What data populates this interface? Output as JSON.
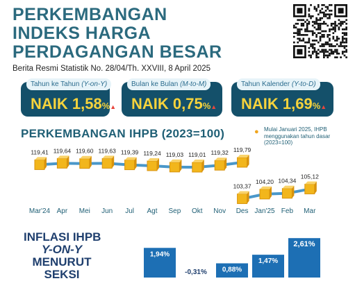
{
  "header": {
    "title_lines": [
      "PERKEMBANGAN",
      "INDEKS HARGA",
      "PERDAGANGAN BESAR"
    ],
    "subtitle": "Berita Resmi Statistik  No. 28/04/Th. XXVIII, 8 April 2025"
  },
  "cards": [
    {
      "label": "Tahun ke Tahun",
      "label_em": "(Y-on-Y)",
      "word": "NAIK",
      "value": "1,58",
      "unit": "%"
    },
    {
      "label": "Bulan ke Bulan",
      "label_em": "(M-to-M)",
      "word": "NAIK",
      "value": "0,75",
      "unit": "%"
    },
    {
      "label": "Tahun Kalender",
      "label_em": "(Y-to-D)",
      "word": "NAIK",
      "value": "1,69",
      "unit": "%"
    }
  ],
  "section_ihpb": {
    "title": "PERKEMBANGAN IHPB (2023=100)",
    "note": "Mulai Januari 2025, IHPB menggunakan tahun dasar (2023=100)"
  },
  "section_inflasi": {
    "line1": "INFLASI IHPB",
    "line2": "Y-ON-Y",
    "line3": "MENURUT",
    "line4": "SEKSI"
  },
  "colors": {
    "accent": "#14506a",
    "highlight": "#f6d33c",
    "cube": "#f2b61c",
    "line": "#4a97c9",
    "bar": "#1d6fb4"
  },
  "chart_data": [
    {
      "type": "line",
      "title": "PERKEMBANGAN IHPB (2023=100)",
      "categories": [
        "Mar'24",
        "Apr",
        "Mei",
        "Jun",
        "Jul",
        "Agt",
        "Sep",
        "Okt",
        "Nov",
        "Des",
        "Jan'25",
        "Feb",
        "Mar"
      ],
      "series": [
        {
          "values": [
            119.41,
            119.64,
            119.6,
            119.63,
            119.39,
            119.24,
            119.03,
            119.01,
            119.32,
            119.79,
            null,
            null,
            null
          ],
          "labels": [
            "119,41",
            "119,64",
            "119,60",
            "119,63",
            "119,39",
            "119,24",
            "119,03",
            "119,01",
            "119,32",
            "119,79",
            null,
            null,
            null
          ]
        },
        {
          "values": [
            null,
            null,
            null,
            null,
            null,
            null,
            null,
            null,
            null,
            103.37,
            104.2,
            104.34,
            105.12
          ],
          "labels": [
            null,
            null,
            null,
            null,
            null,
            null,
            null,
            null,
            null,
            "103,37",
            "104,20",
            "104,34",
            "105,12"
          ]
        }
      ]
    },
    {
      "type": "bar",
      "title": "INFLASI IHPB Y-ON-Y MENURUT SEKSI",
      "values": [
        1.94,
        -0.31,
        0.88,
        1.47,
        2.61
      ],
      "labels": [
        "1,94%",
        "-0,31%",
        "0,88%",
        "1,47%",
        "2,61%"
      ]
    }
  ]
}
